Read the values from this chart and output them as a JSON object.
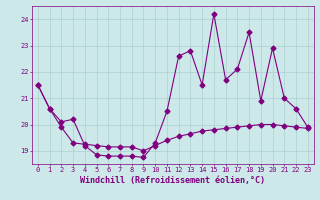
{
  "xlabel": "Windchill (Refroidissement éolien,°C)",
  "bg_color": "#cce8e8",
  "line_color": "#800080",
  "grid_color": "#aad0d0",
  "line1_x": [
    0,
    1,
    2,
    3,
    4,
    5,
    6,
    7,
    8,
    9,
    10,
    11,
    12,
    13,
    14,
    15,
    16,
    17,
    18,
    19,
    20,
    21,
    22,
    23
  ],
  "line1_y": [
    21.5,
    20.6,
    20.1,
    20.2,
    19.2,
    18.85,
    18.8,
    18.8,
    18.8,
    18.75,
    19.3,
    20.5,
    22.6,
    22.8,
    21.5,
    24.2,
    21.7,
    22.1,
    23.5,
    20.9,
    22.9,
    21.0,
    20.6,
    19.9
  ],
  "line2_x": [
    0,
    1,
    2,
    3,
    4,
    5,
    6,
    7,
    8,
    9,
    10,
    11,
    12,
    13,
    14,
    15,
    16,
    17,
    18,
    19,
    20,
    21,
    22,
    23
  ],
  "line2_y": [
    21.5,
    20.6,
    19.9,
    19.3,
    19.25,
    19.2,
    19.15,
    19.15,
    19.15,
    19.0,
    19.2,
    19.4,
    19.55,
    19.65,
    19.75,
    19.8,
    19.85,
    19.9,
    19.95,
    20.0,
    20.0,
    19.95,
    19.9,
    19.85
  ],
  "xlim": [
    -0.5,
    23.5
  ],
  "ylim": [
    18.5,
    24.5
  ],
  "yticks": [
    19,
    20,
    21,
    22,
    23,
    24
  ],
  "xticks": [
    0,
    1,
    2,
    3,
    4,
    5,
    6,
    7,
    8,
    9,
    10,
    11,
    12,
    13,
    14,
    15,
    16,
    17,
    18,
    19,
    20,
    21,
    22,
    23
  ],
  "markersize": 2.5,
  "linewidth": 0.8,
  "tick_fontsize": 5.0,
  "xlabel_fontsize": 6.0
}
